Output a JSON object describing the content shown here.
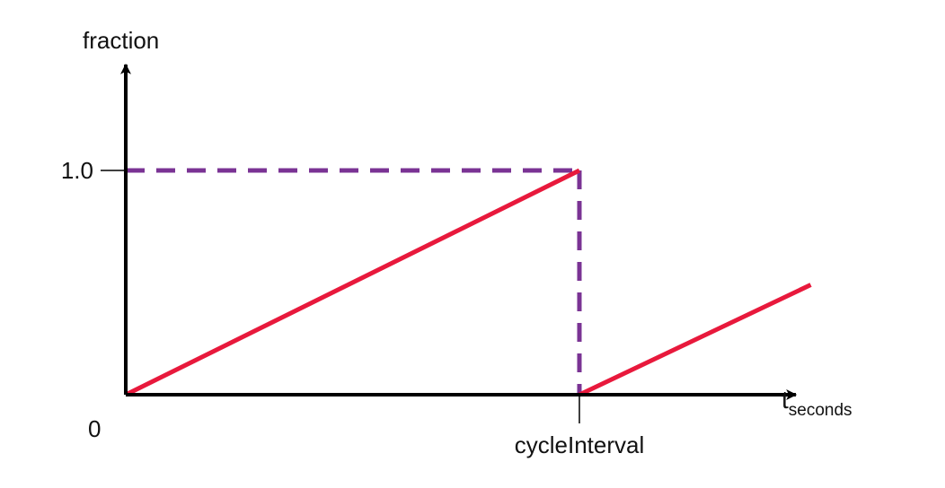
{
  "chart_data": {
    "type": "line",
    "title": "",
    "ylabel": "fraction",
    "xlabel_main": "t",
    "xlabel_sub": "seconds",
    "xlim": [
      0,
      1.51
    ],
    "ylim": [
      0,
      1.0
    ],
    "grid": false,
    "legend": "none",
    "x_ticks": [
      {
        "value": 1.0,
        "label": "cycleInterval"
      }
    ],
    "y_ticks": [
      {
        "value": 1.0,
        "label": "1.0"
      }
    ],
    "origin_label": "0",
    "series": [
      {
        "x": [
          0,
          1.0
        ],
        "y": [
          0,
          1.0
        ]
      },
      {
        "x": [
          1.0,
          1.51
        ],
        "y": [
          0,
          0.49
        ]
      }
    ],
    "reference_lines": [
      {
        "x": [
          0,
          1.0
        ],
        "y": [
          1.0,
          1.0
        ]
      },
      {
        "x": [
          1.0,
          1.0
        ],
        "y": [
          1.0,
          0
        ]
      }
    ],
    "colors": {
      "series": "#e8193c",
      "reference": "#7a3394",
      "axis": "#000000"
    }
  }
}
